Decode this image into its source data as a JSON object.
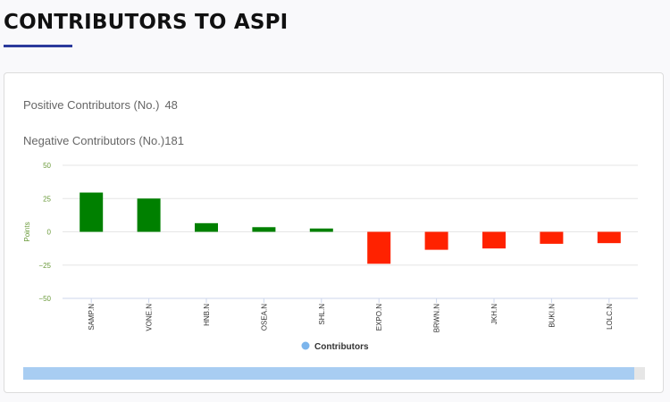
{
  "header": {
    "title": "CONTRIBUTORS TO ASPI"
  },
  "stats": {
    "positive_label": "Positive Contributors (No.)",
    "positive_value": "48",
    "negative_label": "Negative Contributors (No.)",
    "negative_value": "181"
  },
  "colors": {
    "accent": "#2b3a9c",
    "positive": "#008000",
    "negative": "#ff2200",
    "axis_text": "#6a9a3a",
    "legend_marker": "#7cb5ec",
    "scrollbar": "#a8cdf2"
  },
  "chart_data": {
    "type": "bar",
    "categories": [
      "SAMP.N",
      "VONE.N",
      "HNB.N",
      "OSEA.N",
      "SHL.N",
      "EXPO.N",
      "BRWN.N",
      "JKH.N",
      "BUKI.N",
      "LOLC.N"
    ],
    "series": [
      {
        "name": "Contributors",
        "values": [
          29.5,
          25,
          6.5,
          3.5,
          2.5,
          -24,
          -13.5,
          -12.5,
          -9,
          -8.5
        ]
      }
    ],
    "title": "",
    "xlabel": "",
    "ylabel": "Points",
    "ylim": [
      -50,
      50
    ],
    "yticks": [
      50,
      25,
      0,
      -25,
      -50
    ],
    "ytick_labels": [
      "50",
      "25",
      "0",
      "−25",
      "−50"
    ],
    "legend": {
      "label": "Contributors",
      "position": "bottom-center"
    },
    "grid": true
  }
}
